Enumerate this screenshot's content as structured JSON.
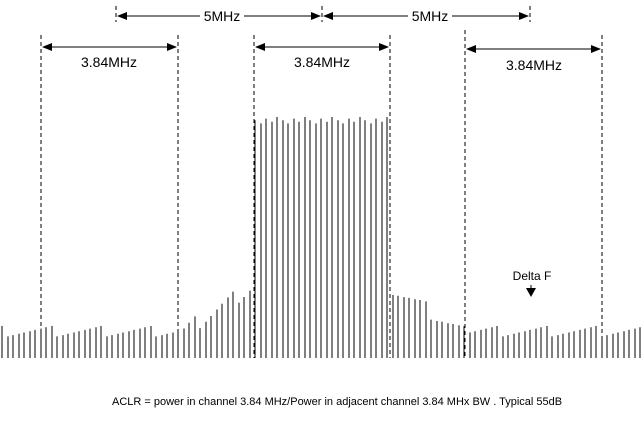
{
  "labels": {
    "channel_spacing_left": "5MHz",
    "channel_spacing_right": "5MHz",
    "bandwidth_left": "3.84MHz",
    "bandwidth_center": "3.84MHz",
    "bandwidth_right": "3.84MHz",
    "delta_f": "Delta F",
    "caption": "ACLR = power in channel 3.84 MHz/Power in adjacent channel 3.84 MHx BW . Typical 55dB"
  }
}
